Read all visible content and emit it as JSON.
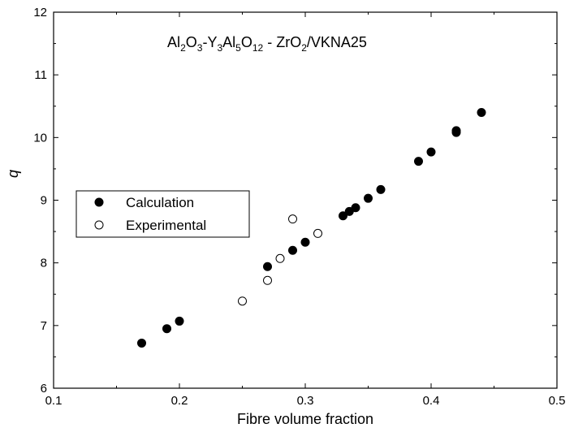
{
  "chart_data": {
    "type": "scatter",
    "title_parts": {
      "a": "Al",
      "a_sub": "2",
      "b": "O",
      "b_sub": "3",
      "c": "-Y",
      "c_sub": "3",
      "d": "Al",
      "d_sub": "5",
      "e": "O",
      "e_sub": "12",
      "f": " - ZrO",
      "f_sub": "2",
      "g": "/VKNA25"
    },
    "xlabel": "Fibre volume fraction",
    "ylabel": "q",
    "xlim": [
      0.1,
      0.5
    ],
    "ylim": [
      6,
      12
    ],
    "xticks": [
      "0.1",
      "0.2",
      "0.3",
      "0.4",
      "0.5"
    ],
    "yticks": [
      "6",
      "7",
      "8",
      "9",
      "10",
      "11",
      "12"
    ],
    "grid": false,
    "legend_position": "center-left",
    "series": [
      {
        "name": "Calculation",
        "marker": "filled-circle",
        "color": "#000000",
        "points": [
          [
            0.17,
            6.72
          ],
          [
            0.19,
            6.95
          ],
          [
            0.2,
            7.07
          ],
          [
            0.27,
            7.94
          ],
          [
            0.29,
            8.2
          ],
          [
            0.3,
            8.33
          ],
          [
            0.33,
            8.75
          ],
          [
            0.335,
            8.82
          ],
          [
            0.34,
            8.88
          ],
          [
            0.35,
            9.03
          ],
          [
            0.36,
            9.17
          ],
          [
            0.39,
            9.62
          ],
          [
            0.4,
            9.77
          ],
          [
            0.42,
            10.08
          ],
          [
            0.42,
            10.11
          ],
          [
            0.44,
            10.4
          ]
        ]
      },
      {
        "name": "Experimental",
        "marker": "open-circle",
        "color": "#000000",
        "points": [
          [
            0.25,
            7.39
          ],
          [
            0.27,
            7.72
          ],
          [
            0.28,
            8.07
          ],
          [
            0.29,
            8.7
          ],
          [
            0.31,
            8.47
          ]
        ]
      }
    ]
  }
}
